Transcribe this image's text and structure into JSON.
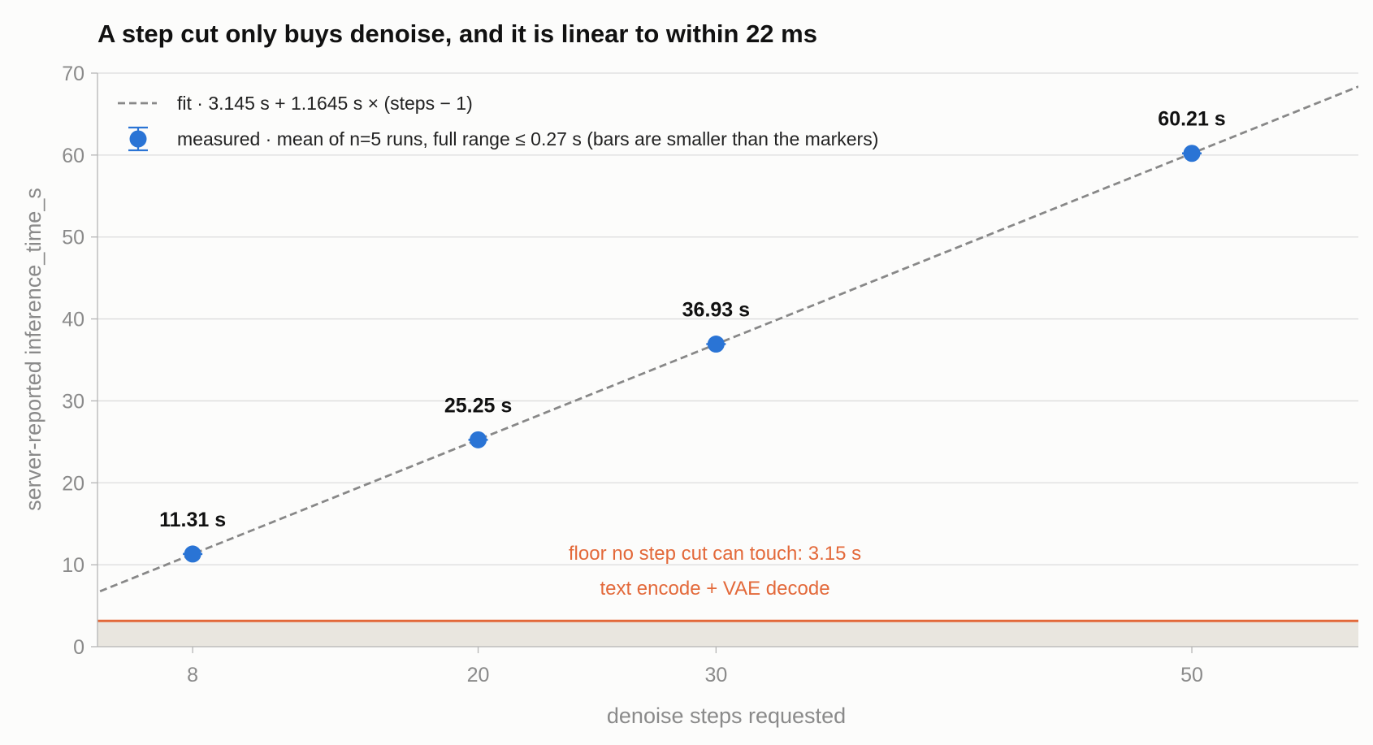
{
  "chart_data": {
    "type": "scatter",
    "title": "A step cut only buys denoise, and it is linear to within 22 ms",
    "xlabel": "denoise steps requested",
    "ylabel": "server-reported inference_time_s",
    "xlim": [
      4,
      57
    ],
    "ylim": [
      0,
      70
    ],
    "x_ticks": [
      8,
      20,
      30,
      50
    ],
    "x_tick_labels": [
      "8",
      "20",
      "30",
      "50"
    ],
    "y_ticks": [
      0,
      10,
      20,
      30,
      40,
      50,
      60,
      70
    ],
    "y_tick_labels": [
      "0",
      "10",
      "20",
      "30",
      "40",
      "50",
      "60",
      "70"
    ],
    "grid": "horizontal",
    "legend_position": "top-left",
    "series": [
      {
        "name": "measured · mean of n=5 runs, full range ≤ 0.27 s (bars are smaller than the markers)",
        "x": [
          8,
          20,
          30,
          50
        ],
        "y": [
          11.31,
          25.25,
          36.93,
          60.21
        ],
        "labels": [
          "11.31 s",
          "25.25 s",
          "36.93 s",
          "60.21 s"
        ],
        "color": "#2a74d5"
      },
      {
        "name": "fit · 3.145 s + 1.1645 s × (steps − 1)",
        "type": "line",
        "style": "dashed",
        "intercept": 3.145,
        "slope": 1.1645,
        "x_start": 1,
        "x_end": 57,
        "color": "#888888"
      }
    ],
    "floor": {
      "value": 3.15,
      "label_line1": "floor no step cut can touch: 3.15 s",
      "label_line2": "text encode + VAE decode",
      "color": "#e3693a",
      "fill": "#e9e6df"
    }
  }
}
